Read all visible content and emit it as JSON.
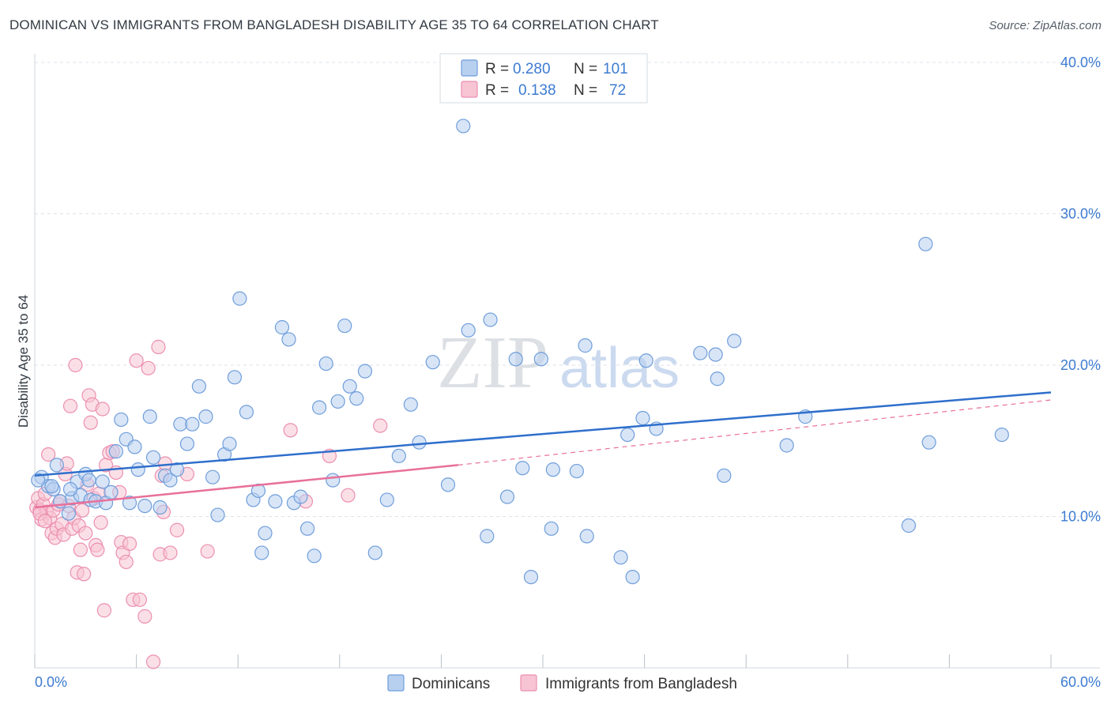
{
  "header": {
    "title": "DOMINICAN VS IMMIGRANTS FROM BANGLADESH DISABILITY AGE 35 TO 64 CORRELATION CHART",
    "source": "Source: ZipAtlas.com"
  },
  "watermark": {
    "zip": "ZIP",
    "atlas": "atlas"
  },
  "legend": {
    "r_label": "R =",
    "n_label": "N =",
    "rows": [
      {
        "name": "Dominicans",
        "r": "0.280",
        "n": "101",
        "color": "#7aa8e0"
      },
      {
        "name": "Immigrants from Bangladesh",
        "r": "0.138",
        "n": "72",
        "color": "#f09ab8"
      }
    ]
  },
  "colors": {
    "blue_fill": "#b8d0f0",
    "blue_stroke": "#6f9edb",
    "blue_line": "#2f6fcc",
    "pink_fill": "#f7c4d4",
    "pink_stroke": "#ec8fb0",
    "pink_line": "#e8709a",
    "axis_text": "#3d7bd1",
    "grid": "#dde2e8"
  },
  "chart_data": {
    "type": "scatter",
    "title": "DOMINICAN VS IMMIGRANTS FROM BANGLADESH DISABILITY AGE 35 TO 64 CORRELATION CHART",
    "xlabel": "",
    "ylabel": "Disability Age 35 to 64",
    "xlim": [
      0,
      60
    ],
    "ylim": [
      0,
      40
    ],
    "x_ticks": [
      "0.0%",
      "60.0%"
    ],
    "y_ticks": [
      {
        "value": 10,
        "label": "10.0%"
      },
      {
        "value": 20,
        "label": "20.0%"
      },
      {
        "value": 30,
        "label": "30.0%"
      },
      {
        "value": 40,
        "label": "40.0%"
      }
    ],
    "grid": true,
    "legend_position": "top-center",
    "series": [
      {
        "name": "Dominicans",
        "r": 0.28,
        "n": 101,
        "trend": {
          "x": [
            0,
            60
          ],
          "y": [
            12.7,
            18.2
          ],
          "style": "solid"
        },
        "points": [
          [
            0.4,
            12.6
          ],
          [
            0.8,
            12.0
          ],
          [
            1.1,
            11.8
          ],
          [
            1.3,
            13.4
          ],
          [
            1.5,
            11.0
          ],
          [
            2.0,
            10.2
          ],
          [
            2.2,
            11.2
          ],
          [
            2.5,
            12.3
          ],
          [
            2.7,
            11.4
          ],
          [
            3.0,
            12.8
          ],
          [
            3.3,
            11.1
          ],
          [
            3.6,
            11.0
          ],
          [
            4.0,
            12.3
          ],
          [
            4.2,
            10.9
          ],
          [
            4.5,
            11.6
          ],
          [
            4.8,
            14.3
          ],
          [
            5.1,
            16.4
          ],
          [
            5.4,
            15.1
          ],
          [
            5.6,
            10.9
          ],
          [
            5.9,
            14.6
          ],
          [
            6.1,
            13.1
          ],
          [
            6.5,
            10.7
          ],
          [
            6.8,
            16.6
          ],
          [
            7.0,
            13.9
          ],
          [
            7.4,
            10.6
          ],
          [
            7.7,
            12.7
          ],
          [
            8.0,
            12.4
          ],
          [
            8.4,
            13.1
          ],
          [
            8.6,
            16.1
          ],
          [
            9.0,
            14.8
          ],
          [
            9.3,
            16.1
          ],
          [
            9.7,
            18.6
          ],
          [
            10.1,
            16.6
          ],
          [
            10.5,
            12.6
          ],
          [
            10.8,
            10.1
          ],
          [
            11.2,
            14.1
          ],
          [
            11.5,
            14.8
          ],
          [
            11.8,
            19.2
          ],
          [
            12.1,
            24.4
          ],
          [
            12.5,
            16.9
          ],
          [
            12.9,
            11.1
          ],
          [
            13.2,
            11.7
          ],
          [
            13.6,
            8.9
          ],
          [
            13.4,
            7.6
          ],
          [
            14.2,
            11.0
          ],
          [
            14.6,
            22.5
          ],
          [
            15.0,
            21.7
          ],
          [
            15.3,
            10.9
          ],
          [
            15.7,
            11.3
          ],
          [
            16.1,
            9.2
          ],
          [
            16.5,
            7.4
          ],
          [
            16.8,
            17.2
          ],
          [
            17.2,
            20.1
          ],
          [
            17.6,
            12.4
          ],
          [
            17.9,
            17.6
          ],
          [
            18.3,
            22.6
          ],
          [
            18.6,
            18.6
          ],
          [
            19.0,
            17.8
          ],
          [
            19.5,
            19.6
          ],
          [
            20.1,
            7.6
          ],
          [
            20.8,
            11.1
          ],
          [
            21.5,
            14.0
          ],
          [
            22.2,
            17.4
          ],
          [
            22.7,
            14.9
          ],
          [
            23.5,
            20.2
          ],
          [
            24.4,
            12.1
          ],
          [
            25.3,
            35.8
          ],
          [
            25.6,
            22.3
          ],
          [
            26.7,
            8.7
          ],
          [
            26.9,
            23.0
          ],
          [
            27.9,
            11.3
          ],
          [
            28.4,
            20.4
          ],
          [
            28.8,
            13.2
          ],
          [
            29.3,
            6.0
          ],
          [
            29.9,
            20.4
          ],
          [
            30.5,
            9.2
          ],
          [
            30.6,
            13.1
          ],
          [
            32.0,
            13.0
          ],
          [
            32.5,
            21.3
          ],
          [
            32.6,
            8.7
          ],
          [
            34.6,
            7.3
          ],
          [
            35.0,
            15.4
          ],
          [
            35.3,
            6.0
          ],
          [
            35.9,
            16.5
          ],
          [
            36.1,
            20.3
          ],
          [
            36.7,
            15.8
          ],
          [
            39.3,
            20.8
          ],
          [
            40.2,
            20.7
          ],
          [
            40.3,
            19.1
          ],
          [
            40.7,
            12.7
          ],
          [
            41.3,
            21.6
          ],
          [
            44.4,
            14.7
          ],
          [
            45.5,
            16.6
          ],
          [
            51.6,
            9.4
          ],
          [
            52.6,
            28.0
          ],
          [
            52.8,
            14.9
          ],
          [
            57.1,
            15.4
          ],
          [
            0.2,
            12.4
          ],
          [
            1.0,
            12.0
          ],
          [
            2.1,
            11.8
          ],
          [
            3.2,
            12.4
          ]
        ]
      },
      {
        "name": "Immigrants from Bangladesh",
        "r": 0.138,
        "n": 72,
        "trend": {
          "x": [
            0,
            25
          ],
          "y": [
            10.6,
            13.4
          ],
          "style": "solid",
          "extension": {
            "x": [
              25,
              60
            ],
            "y": [
              13.4,
              17.7
            ],
            "style": "dashed"
          }
        },
        "points": [
          [
            0.1,
            10.6
          ],
          [
            0.2,
            11.2
          ],
          [
            0.3,
            10.4
          ],
          [
            0.4,
            9.8
          ],
          [
            0.5,
            10.8
          ],
          [
            0.6,
            11.5
          ],
          [
            0.7,
            10.3
          ],
          [
            0.8,
            14.1
          ],
          [
            0.9,
            9.9
          ],
          [
            1.0,
            8.9
          ],
          [
            1.1,
            10.4
          ],
          [
            1.2,
            8.6
          ],
          [
            1.3,
            9.2
          ],
          [
            1.4,
            10.8
          ],
          [
            1.5,
            11.0
          ],
          [
            1.6,
            9.5
          ],
          [
            1.7,
            8.8
          ],
          [
            1.8,
            12.8
          ],
          [
            1.9,
            13.5
          ],
          [
            2.0,
            10.7
          ],
          [
            2.1,
            17.3
          ],
          [
            2.2,
            9.2
          ],
          [
            2.3,
            9.9
          ],
          [
            2.4,
            20.0
          ],
          [
            2.5,
            6.3
          ],
          [
            2.6,
            9.4
          ],
          [
            2.7,
            7.8
          ],
          [
            2.8,
            10.4
          ],
          [
            2.9,
            6.2
          ],
          [
            3.0,
            8.9
          ],
          [
            3.1,
            12.1
          ],
          [
            3.2,
            18.0
          ],
          [
            3.3,
            16.2
          ],
          [
            3.4,
            17.4
          ],
          [
            3.5,
            11.2
          ],
          [
            3.6,
            8.1
          ],
          [
            3.7,
            7.8
          ],
          [
            3.8,
            11.5
          ],
          [
            3.9,
            9.6
          ],
          [
            4.0,
            17.1
          ],
          [
            4.1,
            3.8
          ],
          [
            4.2,
            13.4
          ],
          [
            4.4,
            14.2
          ],
          [
            4.6,
            14.3
          ],
          [
            4.8,
            12.9
          ],
          [
            5.0,
            11.6
          ],
          [
            5.1,
            8.3
          ],
          [
            5.2,
            7.6
          ],
          [
            5.4,
            7.0
          ],
          [
            5.6,
            8.2
          ],
          [
            5.8,
            4.5
          ],
          [
            6.0,
            20.3
          ],
          [
            6.2,
            4.5
          ],
          [
            6.5,
            3.4
          ],
          [
            6.7,
            19.8
          ],
          [
            7.0,
            0.4
          ],
          [
            7.3,
            21.2
          ],
          [
            7.4,
            7.5
          ],
          [
            7.5,
            12.7
          ],
          [
            7.6,
            10.3
          ],
          [
            7.7,
            13.5
          ],
          [
            8.0,
            7.6
          ],
          [
            8.4,
            9.1
          ],
          [
            9.0,
            12.8
          ],
          [
            10.2,
            7.7
          ],
          [
            15.1,
            15.7
          ],
          [
            16.0,
            11.0
          ],
          [
            17.4,
            14.0
          ],
          [
            18.5,
            11.4
          ],
          [
            20.4,
            16.0
          ],
          [
            0.3,
            10.2
          ],
          [
            0.6,
            9.7
          ]
        ]
      }
    ]
  },
  "bottom_legend": [
    "Dominicans",
    "Immigrants from Bangladesh"
  ]
}
